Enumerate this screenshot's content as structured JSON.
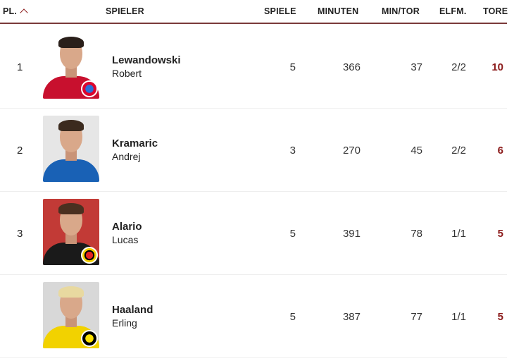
{
  "header": {
    "pl": "PL.",
    "spieler": "SPIELER",
    "spiele": "SPIELE",
    "minuten": "MINUTEN",
    "min_tor": "MIN/TOR",
    "elfm": "ELFM.",
    "tore": "TORE",
    "sort_icon": "chevron-up-icon"
  },
  "colors": {
    "accent": "#8b1a1a"
  },
  "rows": [
    {
      "pl": "1",
      "last": "Lewandowski",
      "first": "Robert",
      "spiele": "5",
      "minuten": "366",
      "min_tor": "37",
      "elfm": "2/2",
      "tore": "10",
      "club": "bayern"
    },
    {
      "pl": "2",
      "last": "Kramaric",
      "first": "Andrej",
      "spiele": "3",
      "minuten": "270",
      "min_tor": "45",
      "elfm": "2/2",
      "tore": "6",
      "club": "hoffenheim"
    },
    {
      "pl": "3",
      "last": "Alario",
      "first": "Lucas",
      "spiele": "5",
      "minuten": "391",
      "min_tor": "78",
      "elfm": "1/1",
      "tore": "5",
      "club": "leverkusen"
    },
    {
      "pl": "",
      "last": "Haaland",
      "first": "Erling",
      "spiele": "5",
      "minuten": "387",
      "min_tor": "77",
      "elfm": "1/1",
      "tore": "5",
      "club": "dortmund"
    }
  ]
}
